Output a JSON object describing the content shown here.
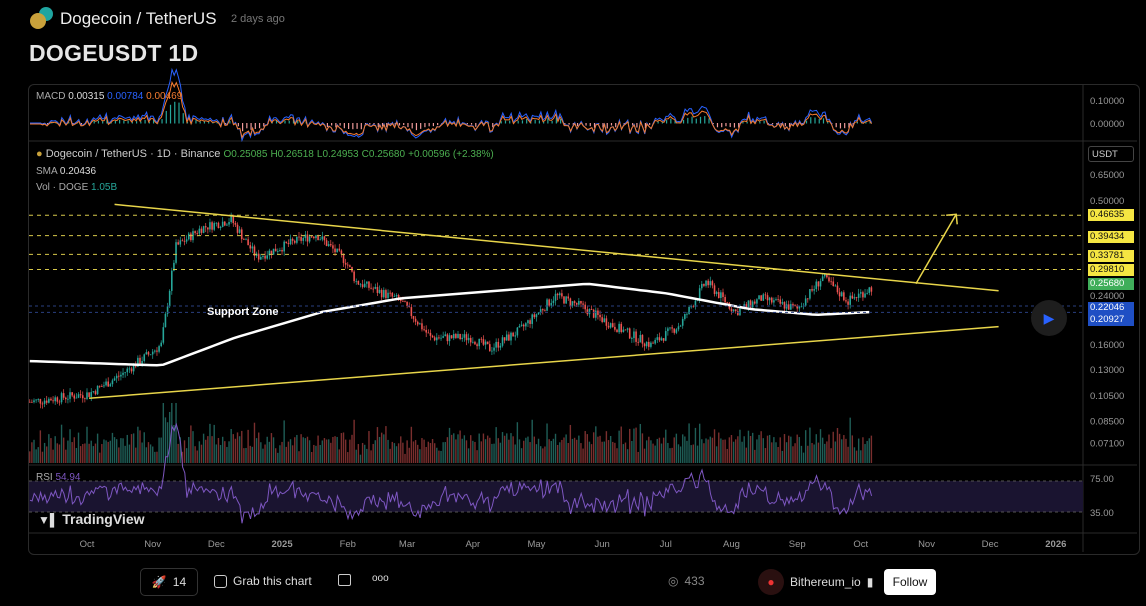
{
  "header": {
    "pair": "Dogecoin / TetherUS",
    "posted": "2 days ago",
    "title": "DOGEUSDT 1D"
  },
  "macd": {
    "label": "MACD",
    "v1": "0.00315",
    "v2": "0.00784",
    "v3": "0.00469",
    "axis": [
      "0.10000",
      "0.00000"
    ]
  },
  "legend": {
    "symbol": "Dogecoin / TetherUS · 1D · Binance",
    "o": "O0.25085",
    "h": "H0.26518",
    "l": "L0.24953",
    "c": "C0.25680",
    "chg": "+0.00596 (+2.38%)",
    "sma_label": "SMA",
    "sma": "0.20436",
    "vol_label": "Vol · DOGE",
    "vol": "1.05B"
  },
  "currency": "USDT",
  "price_axis": [
    "0.65000",
    "0.50000",
    "0.24000",
    "0.16000",
    "0.13000",
    "0.10500",
    "0.08500",
    "0.07100"
  ],
  "price_tags": [
    {
      "v": "0.46635",
      "color": "#f5e642"
    },
    {
      "v": "0.39434",
      "color": "#f5e642"
    },
    {
      "v": "0.33781",
      "color": "#f5e642"
    },
    {
      "v": "0.29810",
      "color": "#f5e642"
    },
    {
      "v": "0.25680",
      "color": "#3fae5a"
    },
    {
      "v": "0.22046",
      "color": "#1f4fc4"
    },
    {
      "v": "0.20927",
      "color": "#1f4fc4"
    }
  ],
  "rsi": {
    "label": "RSI",
    "value": "54.94",
    "axis": [
      "75.00",
      "35.00"
    ]
  },
  "time_axis": [
    "Oct",
    "Nov",
    "Dec",
    "2025",
    "Feb",
    "Mar",
    "Apr",
    "May",
    "Jun",
    "Jul",
    "Aug",
    "Sep",
    "Oct",
    "Nov",
    "Dec",
    "2026"
  ],
  "annotation": "Support Zone",
  "watermark": "TradingView",
  "chart_data": {
    "type": "candlestick",
    "scale": "log",
    "close_waypoints": [
      [
        "2024-09-04",
        0.1
      ],
      [
        "2024-10-02",
        0.107
      ],
      [
        "2024-10-17",
        0.125
      ],
      [
        "2024-11-05",
        0.16
      ],
      [
        "2024-11-12",
        0.36
      ],
      [
        "2024-11-24",
        0.42
      ],
      [
        "2024-12-08",
        0.45
      ],
      [
        "2024-12-20",
        0.33
      ],
      [
        "2025-01-05",
        0.37
      ],
      [
        "2025-01-17",
        0.4
      ],
      [
        "2025-01-31",
        0.32
      ],
      [
        "2025-02-05",
        0.27
      ],
      [
        "2025-02-26",
        0.23
      ],
      [
        "2025-03-12",
        0.17
      ],
      [
        "2025-03-31",
        0.17
      ],
      [
        "2025-04-09",
        0.155
      ],
      [
        "2025-04-23",
        0.18
      ],
      [
        "2025-05-10",
        0.24
      ],
      [
        "2025-05-22",
        0.22
      ],
      [
        "2025-06-05",
        0.19
      ],
      [
        "2025-06-24",
        0.16
      ],
      [
        "2025-07-08",
        0.19
      ],
      [
        "2025-07-20",
        0.27
      ],
      [
        "2025-08-03",
        0.21
      ],
      [
        "2025-08-15",
        0.235
      ],
      [
        "2025-09-01",
        0.215
      ],
      [
        "2025-09-13",
        0.28
      ],
      [
        "2025-09-25",
        0.23
      ],
      [
        "2025-10-06",
        0.2568
      ]
    ],
    "sma_waypoints": [
      [
        "2024-09-04",
        0.14
      ],
      [
        "2024-11-05",
        0.135
      ],
      [
        "2024-12-10",
        0.17
      ],
      [
        "2025-01-20",
        0.21
      ],
      [
        "2025-02-26",
        0.235
      ],
      [
        "2025-05-25",
        0.265
      ],
      [
        "2025-07-01",
        0.245
      ],
      [
        "2025-08-10",
        0.215
      ],
      [
        "2025-09-10",
        0.205
      ],
      [
        "2025-10-06",
        0.21
      ]
    ],
    "trendlines": [
      {
        "from": [
          "2024-10-14",
          0.51
        ],
        "to": [
          "2025-12-05",
          0.25
        ]
      },
      {
        "from": [
          "2024-10-02",
          0.103
        ],
        "to": [
          "2025-12-05",
          0.186
        ]
      }
    ],
    "levels": [
      0.46635,
      0.39434,
      0.33781,
      0.2981
    ],
    "zone_levels": [
      0.22046,
      0.20927
    ],
    "arrow": {
      "from": [
        "2025-10-27",
        0.265
      ],
      "to": [
        "2025-11-15",
        0.47
      ]
    }
  },
  "footer": {
    "boosts": "14",
    "grab": "Grab this chart",
    "views": "433",
    "author": "Bithereum_io",
    "follow": "Follow"
  }
}
